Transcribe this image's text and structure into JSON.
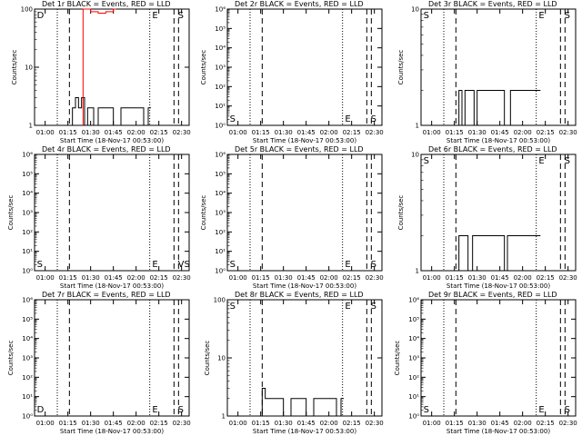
{
  "chart_data": [
    {
      "type": "line",
      "title": "Det 1r BLACK = Events, RED = LLD",
      "xlabel": "Start Time (18-Nov-17 00:53:00)",
      "ylabel": "Counts/sec",
      "yscale": "log",
      "ylim": [
        1,
        100
      ],
      "yticks": [
        "1",
        "10",
        "100"
      ],
      "xticks": [
        "01:00",
        "01:15",
        "01:30",
        "01:45",
        "02:00",
        "02:15",
        "02:30"
      ],
      "xlim": [
        "00:53",
        "02:35"
      ],
      "markers": [
        "D",
        "E",
        "S"
      ],
      "series": [
        {
          "color": "#000000",
          "x": [
            "01:18",
            "01:20",
            "01:22",
            "01:24",
            "01:26",
            "01:28",
            "01:30",
            "01:32",
            "01:35",
            "01:40",
            "01:45",
            "01:50",
            "01:55",
            "02:00",
            "02:05",
            "02:08"
          ],
          "y": [
            2,
            3,
            2,
            3,
            1,
            2,
            2,
            1,
            2,
            2,
            1,
            2,
            2,
            2,
            1,
            2
          ]
        },
        {
          "color": "#ff0000",
          "x": [
            "01:25",
            "01:30",
            "01:35",
            "01:40",
            "01:45"
          ],
          "y": [
            100,
            90,
            85,
            90,
            100
          ]
        }
      ]
    },
    {
      "type": "line",
      "title": "Det 2r BLACK = Events, RED = LLD",
      "xlabel": "Start Time (18-Nov-17 00:53:00)",
      "ylabel": "Counts/sec",
      "yscale": "log",
      "ylim": [
        1,
        1000000
      ],
      "yticks": [
        "10⁰",
        "10¹",
        "10²",
        "10³",
        "10⁴",
        "10⁵",
        "10⁶"
      ],
      "xticks": [
        "01:00",
        "01:15",
        "01:30",
        "01:45",
        "02:00",
        "02:15",
        "02:30"
      ],
      "xlim": [
        "00:53",
        "02:35"
      ],
      "markers": [
        "S",
        "E",
        "S"
      ],
      "series": []
    },
    {
      "type": "line",
      "title": "Det 3r BLACK = Events, RED = LLD",
      "xlabel": "Start Time (18-Nov-17 00:53:00)",
      "ylabel": "Counts/sec",
      "yscale": "log",
      "ylim": [
        1,
        10
      ],
      "yticks": [
        "1",
        "10"
      ],
      "xticks": [
        "01:00",
        "01:15",
        "01:30",
        "01:45",
        "02:00",
        "02:15",
        "02:30"
      ],
      "xlim": [
        "00:53",
        "02:35"
      ],
      "markers": [
        "S",
        "E",
        "S"
      ],
      "series": [
        {
          "color": "#000000",
          "x": [
            "01:18",
            "01:20",
            "01:22",
            "01:25",
            "01:28",
            "01:30",
            "01:32",
            "01:45",
            "01:48",
            "01:52",
            "02:08",
            "02:10"
          ],
          "y": [
            2,
            1,
            2,
            2,
            1,
            2,
            2,
            2,
            1,
            2,
            2,
            2
          ]
        }
      ]
    },
    {
      "type": "line",
      "title": "Det 4r BLACK = Events, RED = LLD",
      "xlabel": "Start Time (18-Nov-17 00:53:00)",
      "ylabel": "Counts/sec",
      "yscale": "log",
      "ylim": [
        1,
        1000000
      ],
      "yticks": [
        "10⁰",
        "10¹",
        "10²",
        "10³",
        "10⁴",
        "10⁵",
        "10⁶"
      ],
      "xticks": [
        "01:00",
        "01:15",
        "01:30",
        "01:45",
        "02:00",
        "02:15",
        "02:30"
      ],
      "xlim": [
        "00:53",
        "02:35"
      ],
      "markers": [
        "S",
        "E",
        "VS"
      ],
      "series": []
    },
    {
      "type": "line",
      "title": "Det 5r BLACK = Events, RED = LLD",
      "xlabel": "Start Time (18-Nov-17 00:53:00)",
      "ylabel": "Counts/sec",
      "yscale": "log",
      "ylim": [
        1,
        1000000
      ],
      "yticks": [
        "10⁰",
        "10¹",
        "10²",
        "10³",
        "10⁴",
        "10⁵",
        "10⁶"
      ],
      "xticks": [
        "01:00",
        "01:15",
        "01:30",
        "01:45",
        "02:00",
        "02:15",
        "02:30"
      ],
      "xlim": [
        "00:53",
        "02:35"
      ],
      "markers": [
        "S",
        "E",
        "S"
      ],
      "series": []
    },
    {
      "type": "line",
      "title": "Det 6r BLACK = Events, RED = LLD",
      "xlabel": "Start Time (18-Nov-17 00:53:00)",
      "ylabel": "Counts/sec",
      "yscale": "log",
      "ylim": [
        1,
        10
      ],
      "yticks": [
        "1",
        "10"
      ],
      "xticks": [
        "01:00",
        "01:15",
        "01:30",
        "01:45",
        "02:00",
        "02:15",
        "02:30"
      ],
      "xlim": [
        "00:53",
        "02:35"
      ],
      "markers": [
        "S",
        "E",
        "S"
      ],
      "series": [
        {
          "color": "#000000",
          "x": [
            "01:18",
            "01:21",
            "01:24",
            "01:27",
            "01:30",
            "01:45",
            "01:48",
            "01:50",
            "02:08",
            "02:10"
          ],
          "y": [
            2,
            2,
            1,
            2,
            2,
            2,
            1,
            2,
            2,
            2
          ]
        }
      ]
    },
    {
      "type": "line",
      "title": "Det 7r BLACK = Events, RED = LLD",
      "xlabel": "Start Time (18-Nov-17 00:53:00)",
      "ylabel": "Counts/sec",
      "yscale": "log",
      "ylim": [
        1,
        1000000
      ],
      "yticks": [
        "10⁰",
        "10¹",
        "10²",
        "10³",
        "10⁴",
        "10⁵",
        "10⁶"
      ],
      "xticks": [
        "01:00",
        "01:15",
        "01:30",
        "01:45",
        "02:00",
        "02:15",
        "02:30"
      ],
      "xlim": [
        "00:53",
        "02:35"
      ],
      "markers": [
        "D",
        "E",
        "S"
      ],
      "series": []
    },
    {
      "type": "line",
      "title": "Det 8r BLACK = Events, RED = LLD",
      "xlabel": "Start Time (18-Nov-17 00:53:00)",
      "ylabel": "Counts/sec",
      "yscale": "log",
      "ylim": [
        1,
        100
      ],
      "yticks": [
        "1",
        "10",
        "100"
      ],
      "xticks": [
        "01:00",
        "01:15",
        "01:30",
        "01:45",
        "02:00",
        "02:15",
        "02:30"
      ],
      "xlim": [
        "00:53",
        "02:35"
      ],
      "markers": [
        "S",
        "E",
        "S"
      ],
      "series": [
        {
          "color": "#000000",
          "x": [
            "01:16",
            "01:18",
            "01:20",
            "01:25",
            "01:30",
            "01:35",
            "01:40",
            "01:45",
            "01:50",
            "01:55",
            "02:00",
            "02:05",
            "02:08"
          ],
          "y": [
            3,
            2,
            2,
            2,
            1,
            2,
            2,
            1,
            2,
            2,
            2,
            1,
            2
          ]
        }
      ]
    },
    {
      "type": "line",
      "title": "Det 9r BLACK = Events, RED = LLD",
      "xlabel": "Start Time (18-Nov-17 00:53:00)",
      "ylabel": "Counts/sec",
      "yscale": "log",
      "ylim": [
        1,
        1000000
      ],
      "yticks": [
        "10⁰",
        "10¹",
        "10²",
        "10³",
        "10⁴",
        "10⁵",
        "10⁶"
      ],
      "xticks": [
        "01:00",
        "01:15",
        "01:30",
        "01:45",
        "02:00",
        "02:15",
        "02:30"
      ],
      "xlim": [
        "00:53",
        "02:35"
      ],
      "markers": [
        "S",
        "E",
        "S"
      ],
      "series": []
    }
  ]
}
